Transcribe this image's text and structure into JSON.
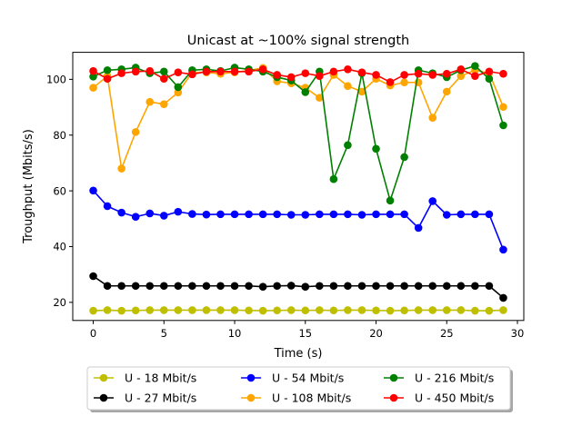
{
  "chart_data": {
    "type": "line",
    "title": "Unicast  at ~100% signal strength",
    "xlabel": "Time (s)",
    "ylabel": "Troughput (Mbits/s)",
    "xlim": [
      -1.45,
      30.45
    ],
    "ylim": [
      13.5,
      109.7
    ],
    "xticks": [
      0,
      5,
      10,
      15,
      20,
      25,
      30
    ],
    "yticks": [
      20,
      40,
      60,
      80,
      100
    ],
    "grid": false,
    "legend_position": "bottom-center",
    "x": [
      0,
      1,
      2,
      3,
      4,
      5,
      6,
      7,
      8,
      9,
      10,
      11,
      12,
      13,
      14,
      15,
      16,
      17,
      18,
      19,
      20,
      21,
      22,
      23,
      24,
      25,
      26,
      27,
      28,
      29
    ],
    "series": [
      {
        "name": "U - 18 Mbit/s",
        "color": "#bfbf00",
        "values": [
          17.0,
          17.2,
          17.0,
          17.1,
          17.2,
          17.2,
          17.2,
          17.2,
          17.2,
          17.2,
          17.2,
          17.1,
          17.0,
          17.1,
          17.2,
          17.1,
          17.2,
          17.1,
          17.2,
          17.2,
          17.1,
          17.0,
          17.1,
          17.2,
          17.2,
          17.2,
          17.2,
          17.0,
          17.0,
          17.2
        ]
      },
      {
        "name": "U - 27 Mbit/s",
        "color": "#000000",
        "values": [
          29.4,
          25.9,
          25.9,
          25.9,
          25.9,
          25.9,
          25.9,
          25.9,
          25.9,
          25.9,
          25.9,
          25.9,
          25.6,
          25.9,
          26.0,
          25.6,
          25.9,
          25.9,
          25.9,
          25.9,
          25.9,
          25.9,
          25.9,
          25.9,
          25.9,
          25.9,
          25.9,
          25.9,
          25.9,
          21.6
        ]
      },
      {
        "name": "U - 54 Mbit/s",
        "color": "#0000ff",
        "values": [
          60.1,
          54.5,
          52.2,
          50.7,
          51.9,
          51.1,
          52.5,
          51.7,
          51.5,
          51.6,
          51.6,
          51.6,
          51.6,
          51.6,
          51.4,
          51.4,
          51.6,
          51.6,
          51.6,
          51.4,
          51.6,
          51.6,
          51.6,
          46.7,
          56.3,
          51.4,
          51.6,
          51.6,
          51.6,
          38.9
        ]
      },
      {
        "name": "U - 108 Mbit/s",
        "color": "#ffa500",
        "values": [
          97.0,
          101.2,
          68.0,
          81.1,
          91.9,
          91.1,
          95.3,
          102.5,
          102.5,
          102.0,
          102.5,
          103.2,
          104.1,
          99.3,
          98.6,
          97.0,
          93.4,
          101.6,
          97.6,
          95.6,
          100.2,
          97.8,
          98.9,
          98.9,
          86.2,
          95.6,
          101.2,
          103.3,
          102.2,
          90.1
        ]
      },
      {
        "name": "U - 216 Mbit/s",
        "color": "#008000",
        "values": [
          101.0,
          103.3,
          103.6,
          104.2,
          102.2,
          102.8,
          97.2,
          103.3,
          103.6,
          103.0,
          104.2,
          103.6,
          102.8,
          100.8,
          99.6,
          95.4,
          102.8,
          64.2,
          76.4,
          102.2,
          75.1,
          56.5,
          72.1,
          103.3,
          102.2,
          100.8,
          103.3,
          104.8,
          100.2,
          83.5
        ]
      },
      {
        "name": "U - 450 Mbit/s",
        "color": "#ff0000",
        "values": [
          103.0,
          100.2,
          102.2,
          102.8,
          103.0,
          100.2,
          102.5,
          101.8,
          102.8,
          102.8,
          102.8,
          102.8,
          103.6,
          101.6,
          100.8,
          102.2,
          101.2,
          102.8,
          103.6,
          102.5,
          101.6,
          99.0,
          101.6,
          102.0,
          101.6,
          102.0,
          103.6,
          101.2,
          102.8,
          102.0
        ]
      }
    ]
  }
}
